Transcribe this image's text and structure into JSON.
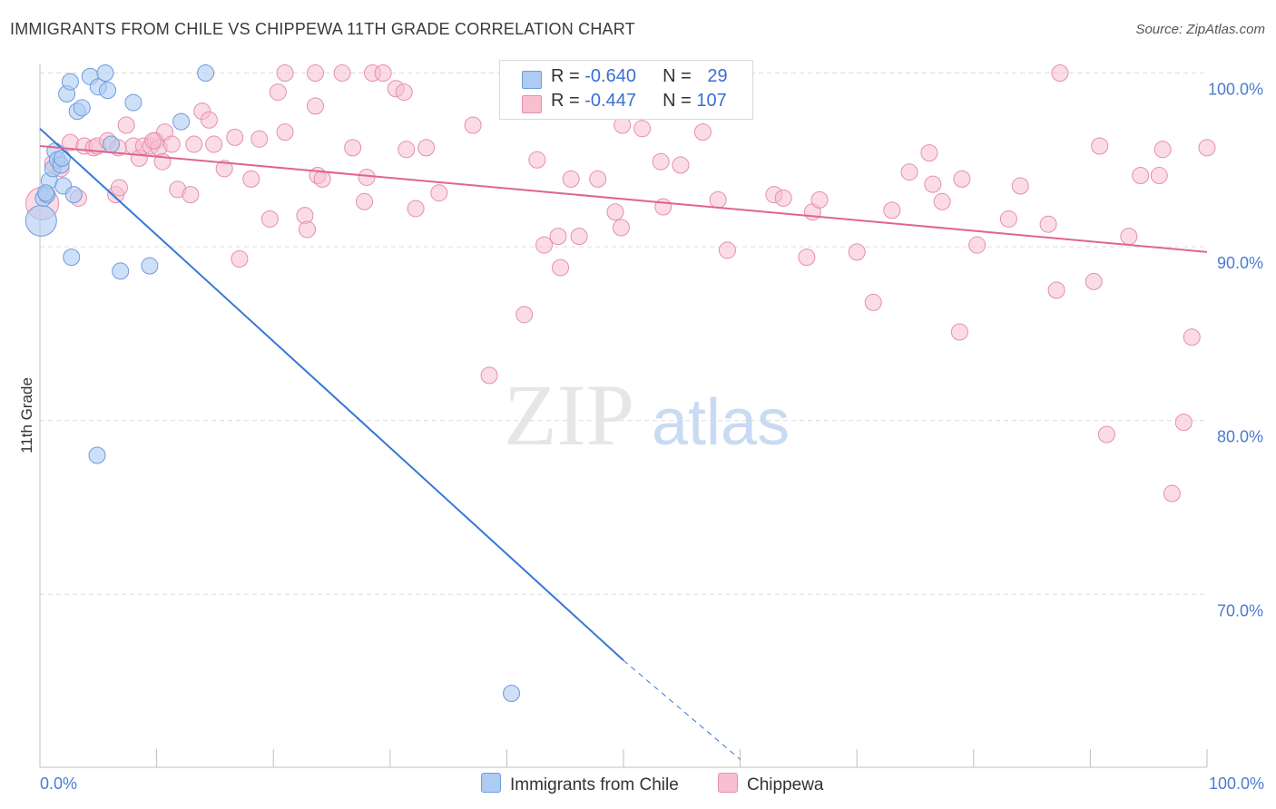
{
  "title": "IMMIGRANTS FROM CHILE VS CHIPPEWA 11TH GRADE CORRELATION CHART",
  "source": "Source: ZipAtlas.com",
  "watermark": {
    "zip": "ZIP",
    "atlas": "atlas"
  },
  "legend": {
    "rows": [
      {
        "r_label": "R = ",
        "r_value": "-0.640",
        "n_label": "N = ",
        "n_value": "29"
      },
      {
        "r_label": "R = ",
        "r_value": "-0.447",
        "n_label": "N = ",
        "n_value": "107"
      }
    ]
  },
  "bottom_legend": [
    "Immigrants from Chile",
    "Chippewa"
  ],
  "colors": {
    "blue_fill": "#aecbf2",
    "blue_stroke": "#6d9be0",
    "blue_line": "#3578d6",
    "pink_fill": "#f7bfd0",
    "pink_stroke": "#e48fac",
    "pink_line": "#e0648f",
    "grid": "#dcdcdc",
    "tick_text": "#4a7bd0"
  },
  "chart_data": {
    "type": "scatter",
    "title": "IMMIGRANTS FROM CHILE VS CHIPPEWA 11TH GRADE CORRELATION CHART",
    "xlabel": "",
    "ylabel": "11th Grade",
    "xlim": [
      0,
      100
    ],
    "ylim": [
      60.5,
      101.5
    ],
    "x_tick_labels": [
      "0.0%",
      "100.0%"
    ],
    "y_ticks": [
      70,
      80,
      90,
      100
    ],
    "y_tick_labels": [
      "70.0%",
      "80.0%",
      "90.0%",
      "100.0%"
    ],
    "grid": true,
    "legend_position": "top-center",
    "series": [
      {
        "name": "Immigrants from Chile",
        "color": "#aecbf2",
        "trend": {
          "x": [
            0,
            50
          ],
          "y": [
            96.8,
            66.2
          ],
          "dashed_to": [
            60,
            60.5
          ]
        },
        "points": [
          [
            0.1,
            91.5,
            3
          ],
          [
            0.3,
            92.8,
            1
          ],
          [
            0.6,
            93.0,
            1
          ],
          [
            0.8,
            93.8,
            1
          ],
          [
            1.1,
            94.5,
            1
          ],
          [
            1.3,
            95.5,
            1
          ],
          [
            1.5,
            95.0,
            1
          ],
          [
            1.8,
            94.7,
            1
          ],
          [
            2.0,
            93.5,
            1
          ],
          [
            2.3,
            98.8,
            1
          ],
          [
            2.6,
            99.5,
            1
          ],
          [
            2.9,
            93.0,
            1
          ],
          [
            3.2,
            97.8,
            1
          ],
          [
            3.6,
            98.0,
            1
          ],
          [
            4.3,
            99.8,
            1
          ],
          [
            5.0,
            99.2,
            1
          ],
          [
            5.6,
            100.0,
            1
          ],
          [
            5.8,
            99.0,
            1
          ],
          [
            6.1,
            95.9,
            1
          ],
          [
            8.0,
            98.3,
            1
          ],
          [
            12.1,
            97.2,
            1
          ],
          [
            14.2,
            100.0,
            1
          ],
          [
            2.7,
            89.4,
            1
          ],
          [
            6.9,
            88.6,
            1
          ],
          [
            9.4,
            88.9,
            1
          ],
          [
            4.9,
            78.0,
            1
          ],
          [
            40.4,
            64.3,
            1
          ],
          [
            1.9,
            95.1,
            1
          ],
          [
            0.5,
            93.1,
            1
          ]
        ]
      },
      {
        "name": "Chippewa",
        "color": "#f7bfd0",
        "trend": {
          "x": [
            0,
            100
          ],
          "y": [
            95.8,
            89.7
          ]
        },
        "points": [
          [
            0.2,
            92.5,
            2
          ],
          [
            1.1,
            94.8,
            1
          ],
          [
            1.8,
            94.5,
            1
          ],
          [
            2.6,
            96.0,
            1
          ],
          [
            3.3,
            92.8,
            1
          ],
          [
            3.8,
            95.8,
            1
          ],
          [
            4.6,
            95.7,
            1
          ],
          [
            4.9,
            95.8,
            1
          ],
          [
            5.8,
            96.1,
            1
          ],
          [
            6.5,
            93.0,
            1
          ],
          [
            6.8,
            93.4,
            1
          ],
          [
            7.4,
            97.0,
            1
          ],
          [
            8.0,
            95.8,
            1
          ],
          [
            8.5,
            95.1,
            1
          ],
          [
            8.9,
            95.8,
            1
          ],
          [
            9.5,
            95.8,
            1
          ],
          [
            9.9,
            96.1,
            1
          ],
          [
            10.2,
            95.7,
            1
          ],
          [
            10.5,
            94.9,
            1
          ],
          [
            10.7,
            96.6,
            1
          ],
          [
            11.3,
            95.9,
            1
          ],
          [
            11.8,
            93.3,
            1
          ],
          [
            12.9,
            93.0,
            1
          ],
          [
            13.2,
            95.9,
            1
          ],
          [
            13.9,
            97.8,
            1
          ],
          [
            14.5,
            97.3,
            1
          ],
          [
            14.9,
            95.9,
            1
          ],
          [
            15.8,
            94.5,
            1
          ],
          [
            16.7,
            96.3,
            1
          ],
          [
            17.1,
            89.3,
            1
          ],
          [
            18.1,
            93.9,
            1
          ],
          [
            18.8,
            96.2,
            1
          ],
          [
            19.7,
            91.6,
            1
          ],
          [
            20.4,
            98.9,
            1
          ],
          [
            21.0,
            100.0,
            1
          ],
          [
            22.7,
            91.8,
            1
          ],
          [
            22.9,
            91.0,
            1
          ],
          [
            23.6,
            100.0,
            1
          ],
          [
            23.8,
            94.1,
            1
          ],
          [
            24.2,
            93.9,
            1
          ],
          [
            25.9,
            100.0,
            1
          ],
          [
            26.8,
            95.7,
            1
          ],
          [
            27.8,
            92.6,
            1
          ],
          [
            28.0,
            94.0,
            1
          ],
          [
            28.5,
            100.0,
            1
          ],
          [
            29.4,
            100.0,
            1
          ],
          [
            30.5,
            99.1,
            1
          ],
          [
            31.2,
            98.9,
            1
          ],
          [
            31.4,
            95.6,
            1
          ],
          [
            32.2,
            92.2,
            1
          ],
          [
            33.1,
            95.7,
            1
          ],
          [
            34.2,
            93.1,
            1
          ],
          [
            37.1,
            97.0,
            1
          ],
          [
            38.5,
            82.6,
            1
          ],
          [
            41.5,
            86.1,
            1
          ],
          [
            42.6,
            95.0,
            1
          ],
          [
            43.2,
            90.1,
            1
          ],
          [
            44.4,
            90.6,
            1
          ],
          [
            44.6,
            88.8,
            1
          ],
          [
            45.5,
            93.9,
            1
          ],
          [
            46.2,
            90.6,
            1
          ],
          [
            47.8,
            93.9,
            1
          ],
          [
            49.3,
            92.0,
            1
          ],
          [
            49.8,
            91.1,
            1
          ],
          [
            49.9,
            97.0,
            1
          ],
          [
            51.6,
            96.8,
            1
          ],
          [
            53.2,
            94.9,
            1
          ],
          [
            53.4,
            92.3,
            1
          ],
          [
            54.9,
            94.7,
            1
          ],
          [
            56.8,
            96.6,
            1
          ],
          [
            58.1,
            92.7,
            1
          ],
          [
            58.9,
            89.8,
            1
          ],
          [
            62.9,
            93.0,
            1
          ],
          [
            63.7,
            92.8,
            1
          ],
          [
            65.7,
            89.4,
            1
          ],
          [
            66.2,
            92.0,
            1
          ],
          [
            66.8,
            92.7,
            1
          ],
          [
            70.0,
            89.7,
            1
          ],
          [
            71.4,
            86.8,
            1
          ],
          [
            73.0,
            92.1,
            1
          ],
          [
            74.5,
            94.3,
            1
          ],
          [
            76.2,
            95.4,
            1
          ],
          [
            76.5,
            93.6,
            1
          ],
          [
            77.3,
            92.6,
            1
          ],
          [
            78.8,
            85.1,
            1
          ],
          [
            79.0,
            93.9,
            1
          ],
          [
            80.3,
            90.1,
            1
          ],
          [
            83.0,
            91.6,
            1
          ],
          [
            84.0,
            93.5,
            1
          ],
          [
            86.4,
            91.3,
            1
          ],
          [
            87.1,
            87.5,
            1
          ],
          [
            87.4,
            100.0,
            1
          ],
          [
            90.3,
            88.0,
            1
          ],
          [
            90.8,
            95.8,
            1
          ],
          [
            91.4,
            79.2,
            1
          ],
          [
            93.3,
            90.6,
            1
          ],
          [
            94.3,
            94.1,
            1
          ],
          [
            95.9,
            94.1,
            1
          ],
          [
            96.2,
            95.6,
            1
          ],
          [
            97.0,
            75.8,
            1
          ],
          [
            98.0,
            79.9,
            1
          ],
          [
            98.7,
            84.8,
            1
          ],
          [
            100.0,
            95.7,
            1
          ],
          [
            6.7,
            95.7,
            1
          ],
          [
            9.7,
            96.1,
            1
          ],
          [
            21.0,
            96.6,
            1
          ],
          [
            23.6,
            98.1,
            1
          ]
        ]
      }
    ]
  }
}
